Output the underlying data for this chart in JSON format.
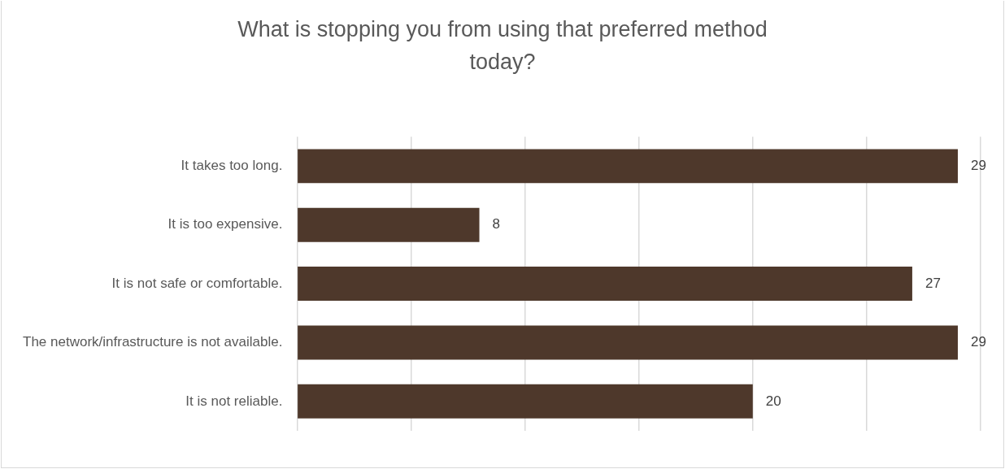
{
  "chart_data": {
    "type": "bar",
    "orientation": "horizontal",
    "title": "What is stopping you from using that preferred method today?",
    "categories": [
      "It takes too long.",
      "It is too expensive.",
      "It is not safe or comfortable.",
      "The network/infrastructure is not available.",
      "It is not reliable."
    ],
    "values": [
      29,
      8,
      27,
      29,
      20
    ],
    "color": "#4e382b",
    "xlim": [
      0,
      30
    ],
    "xticks": [
      {
        "value": 0,
        "label": null
      },
      {
        "value": 5,
        "label": null
      },
      {
        "value": 10,
        "label": null
      },
      {
        "value": 15,
        "label": null
      },
      {
        "value": 20,
        "label": null
      },
      {
        "value": 25,
        "label": null
      },
      {
        "value": 30,
        "label": null
      }
    ],
    "grid": "x",
    "tick_labels": "y",
    "data_labels": true,
    "legend": false
  }
}
